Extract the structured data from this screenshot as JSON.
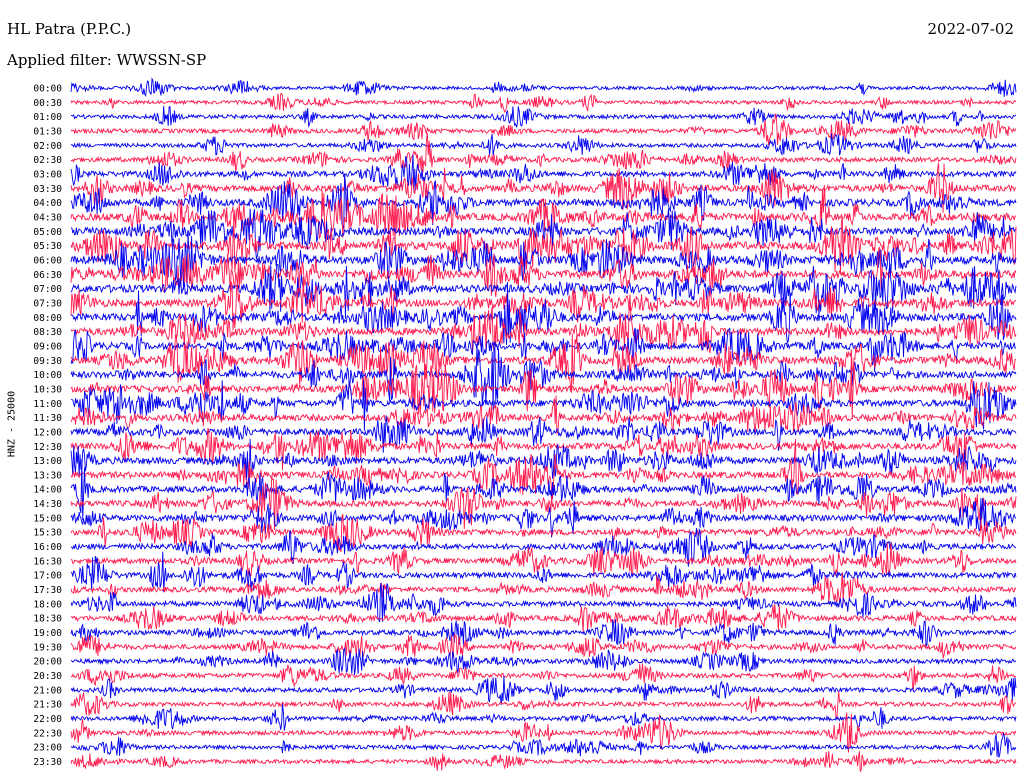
{
  "header": {
    "station": "HL Patra (P.P.C.)",
    "date": "2022-07-02",
    "filter": "Applied filter: WWSSN-SP",
    "channel_label": "HNZ - 25000"
  },
  "colors": {
    "trace_a": "#0000ee",
    "trace_b": "#ff1a4d",
    "background": "#ffffff"
  },
  "chart_data": {
    "type": "line",
    "title": "HL Patra (P.P.C.)",
    "subtitle": "Applied filter: WWSSN-SP",
    "ylabel": "HNZ - 25000",
    "legend": "none",
    "grid": false,
    "row_labels": [
      "00:00",
      "00:30",
      "01:00",
      "01:30",
      "02:00",
      "02:30",
      "03:00",
      "03:30",
      "04:00",
      "04:30",
      "05:00",
      "05:30",
      "06:00",
      "06:30",
      "07:00",
      "07:30",
      "08:00",
      "08:30",
      "09:00",
      "09:30",
      "10:00",
      "10:30",
      "11:00",
      "11:30",
      "12:00",
      "12:30",
      "13:00",
      "13:30",
      "14:00",
      "14:30",
      "15:00",
      "15:30",
      "16:00",
      "16:30",
      "17:00",
      "17:30",
      "18:00",
      "18:30",
      "19:00",
      "19:30",
      "20:00",
      "20:30",
      "21:00",
      "21:30",
      "22:00",
      "22:30",
      "23:00",
      "23:30"
    ],
    "row_colors": [
      "blue",
      "red"
    ],
    "relative_activity": [
      0.25,
      0.3,
      0.35,
      0.4,
      0.35,
      0.45,
      0.6,
      0.75,
      0.85,
      0.9,
      0.95,
      1.0,
      1.0,
      1.0,
      0.95,
      0.9,
      0.95,
      0.9,
      0.85,
      0.85,
      0.8,
      0.8,
      0.8,
      0.75,
      0.75,
      0.75,
      0.8,
      0.75,
      0.7,
      0.7,
      0.7,
      0.65,
      0.6,
      0.6,
      0.6,
      0.55,
      0.55,
      0.55,
      0.5,
      0.5,
      0.45,
      0.45,
      0.45,
      0.4,
      0.4,
      0.4,
      0.35,
      0.35
    ]
  }
}
